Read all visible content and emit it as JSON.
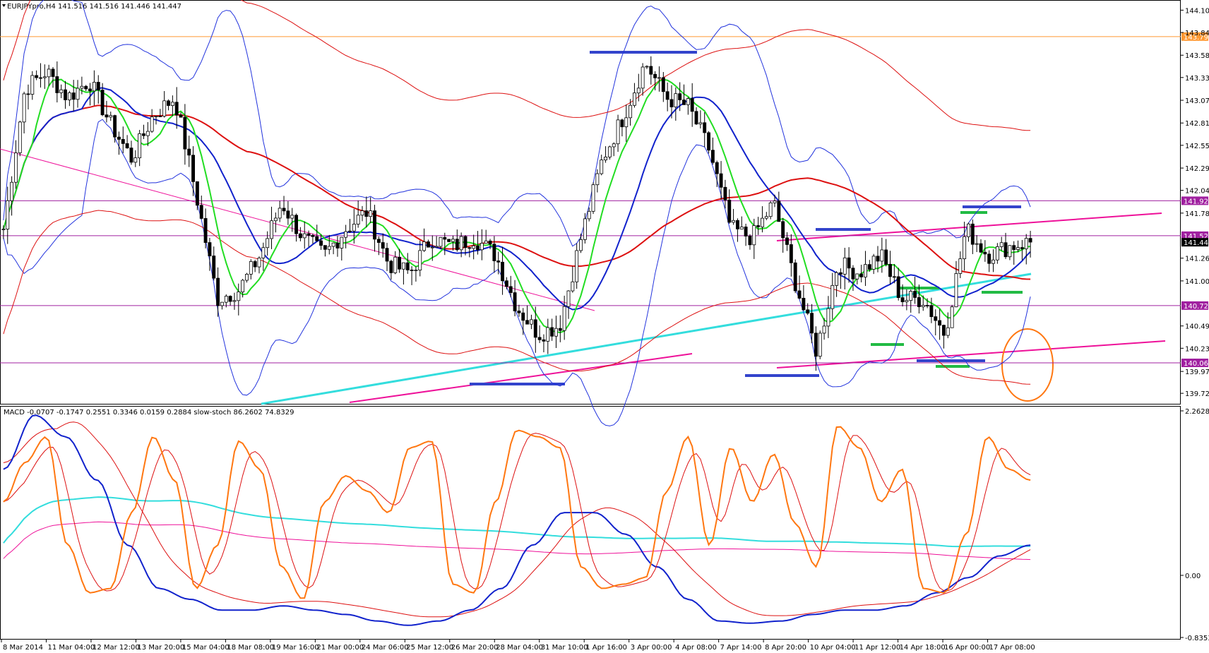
{
  "chart_data": {
    "type": "candlestick",
    "symbol_header": "EURJPYpro,H4  141.516 141.516 141.446 141.447",
    "price_axis": {
      "range": [
        139.6,
        144.2
      ],
      "ticks": [
        "144.100",
        "143.845",
        "143.585",
        "143.330",
        "143.070",
        "142.810",
        "142.555",
        "142.295",
        "142.040",
        "141.780",
        "141.265",
        "141.005",
        "140.490",
        "140.235",
        "139.970",
        "139.720"
      ]
    },
    "levels": [
      {
        "label": "143.798",
        "value": 143.798,
        "color": "#ff9933"
      },
      {
        "label": "141.921",
        "value": 141.921,
        "color": "#a020a0"
      },
      {
        "label": "141.522",
        "value": 141.522,
        "color": "#a020a0"
      },
      {
        "label": "140.723",
        "value": 140.723,
        "color": "#a020a0"
      },
      {
        "label": "140.068",
        "value": 140.068,
        "color": "#a020a0"
      }
    ],
    "last_price": {
      "label": "141.447",
      "value": 141.447
    },
    "date_labels": [
      "8 Mar 2014",
      "11 Mar 04:00",
      "12 Mar 12:00",
      "13 Mar 20:00",
      "15 Mar 04:00",
      "18 Mar 08:00",
      "19 Mar 16:00",
      "21 Mar 00:00",
      "24 Mar 06:00",
      "25 Mar 12:00",
      "26 Mar 20:00",
      "28 Mar 04:00",
      "31 Mar 10:00",
      "1 Apr 16:00",
      "3 Apr 00:00",
      "4 Apr 08:00",
      "7 Apr 14:00",
      "8 Apr 20:00",
      "10 Apr 04:00",
      "11 Apr 12:00",
      "14 Apr 18:00",
      "16 Apr 00:00",
      "17 Apr 08:00"
    ],
    "price_path": [
      141.6,
      143.2,
      143.4,
      143.1,
      143.3,
      142.8,
      142.4,
      142.9,
      143.1,
      142.0,
      140.8,
      140.9,
      141.3,
      141.9,
      141.5,
      141.3,
      141.6,
      141.8,
      141.2,
      141.1,
      141.5,
      141.4,
      141.5,
      141.3,
      140.7,
      140.4,
      140.5,
      141.5,
      142.4,
      142.9,
      143.5,
      143.1,
      143.0,
      142.5,
      141.6,
      141.5,
      141.9,
      141.0,
      140.2,
      141.2,
      141.1,
      141.3,
      140.8,
      140.8,
      140.4,
      141.6,
      141.3,
      141.4,
      141.45
    ],
    "oscillator_header": "MACD -0.0707 -0.1747 0.2551 0.3346 0.0159 0.2884  slow-stoch 86.2602 74.8329",
    "oscillator_axis": {
      "ticks": [
        "2.2628",
        "0.00",
        "-0.8353"
      ]
    },
    "stoch_main": [
      60,
      78,
      90,
      40,
      18,
      20,
      55,
      90,
      70,
      20,
      40,
      88,
      75,
      30,
      15,
      60,
      72,
      65,
      55,
      85,
      88,
      22,
      18,
      60,
      93,
      90,
      85,
      30,
      20,
      22,
      25,
      65,
      90,
      40,
      85,
      60,
      82,
      50,
      30,
      95,
      85,
      60,
      75,
      20,
      18,
      45,
      90,
      75,
      70
    ],
    "macd_main": [
      75,
      100,
      90,
      70,
      40,
      20,
      15,
      10,
      10,
      12,
      10,
      8,
      5,
      3,
      5,
      10,
      20,
      40,
      55,
      55,
      45,
      30,
      15,
      5,
      4,
      5,
      8,
      10,
      10,
      12,
      18,
      25,
      35,
      40
    ],
    "colors": {
      "up": "#ffffff",
      "down": "#000000",
      "ma_fast": "#22dd22",
      "ma_mid": "#1122cc",
      "ma_slow": "#dd1111",
      "ma_long": "#33dddd",
      "bands": "#2233dd",
      "stoch": "#ff7711",
      "trend": "#ee1199"
    }
  }
}
